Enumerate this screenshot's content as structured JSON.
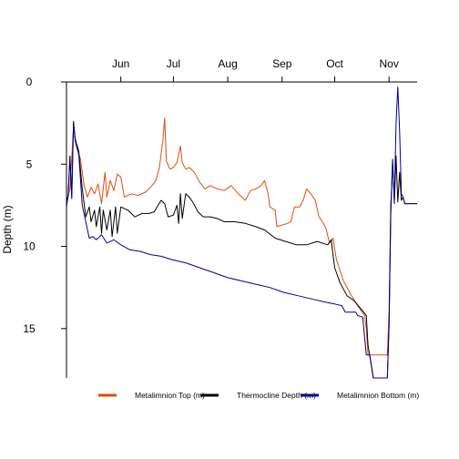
{
  "chart_data": {
    "type": "line",
    "ylabel": "Depth (m)",
    "y_reversed": true,
    "ylim": [
      18,
      0
    ],
    "yticks": [
      0,
      5,
      10,
      15
    ],
    "xlim": [
      "2012-05-01",
      "2012-11-17"
    ],
    "x_axis_position": "top",
    "x_ticks": [
      {
        "date": "2012-06-01",
        "label": "Jun"
      },
      {
        "date": "2012-07-01",
        "label": "Jul"
      },
      {
        "date": "2012-08-01",
        "label": "Aug"
      },
      {
        "date": "2012-09-01",
        "label": "Sep"
      },
      {
        "date": "2012-10-01",
        "label": "Oct"
      },
      {
        "date": "2012-11-01",
        "label": "Nov"
      }
    ],
    "grid": false,
    "legend_position": "bottom",
    "series": [
      {
        "name": "Metalimnion Top (m)",
        "color": "#e34a0f",
        "points": [
          [
            "2012-05-01",
            7.4
          ],
          [
            "2012-05-03",
            6.5
          ],
          [
            "2012-05-05",
            2.8
          ],
          [
            "2012-05-07",
            4.0
          ],
          [
            "2012-05-09",
            4.7
          ],
          [
            "2012-05-11",
            6.3
          ],
          [
            "2012-05-13",
            7.0
          ],
          [
            "2012-05-15",
            6.4
          ],
          [
            "2012-05-17",
            6.8
          ],
          [
            "2012-05-19",
            6.2
          ],
          [
            "2012-05-21",
            7.4
          ],
          [
            "2012-05-23",
            5.5
          ],
          [
            "2012-05-24",
            7.0
          ],
          [
            "2012-05-26",
            6.0
          ],
          [
            "2012-05-28",
            6.6
          ],
          [
            "2012-05-30",
            5.6
          ],
          [
            "2012-06-01",
            5.8
          ],
          [
            "2012-06-03",
            7.0
          ],
          [
            "2012-06-07",
            6.8
          ],
          [
            "2012-06-11",
            6.9
          ],
          [
            "2012-06-15",
            6.7
          ],
          [
            "2012-06-18",
            6.4
          ],
          [
            "2012-06-21",
            6.0
          ],
          [
            "2012-06-23",
            5.2
          ],
          [
            "2012-06-25",
            3.5
          ],
          [
            "2012-06-26",
            2.2
          ],
          [
            "2012-06-27",
            4.8
          ],
          [
            "2012-06-29",
            5.3
          ],
          [
            "2012-07-01",
            5.2
          ],
          [
            "2012-07-03",
            4.9
          ],
          [
            "2012-07-05",
            3.9
          ],
          [
            "2012-07-06",
            4.9
          ],
          [
            "2012-07-08",
            5.3
          ],
          [
            "2012-07-10",
            5.2
          ],
          [
            "2012-07-13",
            5.5
          ],
          [
            "2012-07-16",
            6.1
          ],
          [
            "2012-07-19",
            6.5
          ],
          [
            "2012-07-22",
            6.3
          ],
          [
            "2012-07-26",
            6.5
          ],
          [
            "2012-07-30",
            6.6
          ],
          [
            "2012-08-03",
            6.3
          ],
          [
            "2012-08-07",
            6.8
          ],
          [
            "2012-08-11",
            7.2
          ],
          [
            "2012-08-14",
            6.6
          ],
          [
            "2012-08-17",
            6.5
          ],
          [
            "2012-08-20",
            6.3
          ],
          [
            "2012-08-22",
            6.0
          ],
          [
            "2012-08-24",
            6.8
          ],
          [
            "2012-08-25",
            7.6
          ],
          [
            "2012-08-28",
            7.8
          ],
          [
            "2012-08-29",
            8.8
          ],
          [
            "2012-09-01",
            8.7
          ],
          [
            "2012-09-04",
            8.6
          ],
          [
            "2012-09-06",
            8.5
          ],
          [
            "2012-09-08",
            7.6
          ],
          [
            "2012-09-11",
            7.6
          ],
          [
            "2012-09-13",
            7.2
          ],
          [
            "2012-09-15",
            6.5
          ],
          [
            "2012-09-18",
            6.9
          ],
          [
            "2012-09-20",
            7.2
          ],
          [
            "2012-09-22",
            8.2
          ],
          [
            "2012-09-24",
            8.5
          ],
          [
            "2012-09-26",
            8.9
          ],
          [
            "2012-09-28",
            9.8
          ],
          [
            "2012-09-30",
            9.5
          ],
          [
            "2012-10-02",
            10.8
          ],
          [
            "2012-10-06",
            12.1
          ],
          [
            "2012-10-10",
            12.9
          ],
          [
            "2012-10-14",
            13.6
          ],
          [
            "2012-10-18",
            14.2
          ],
          [
            "2012-10-19",
            15.0
          ],
          [
            "2012-10-20",
            16.6
          ],
          [
            "2012-10-31",
            16.6
          ],
          [
            "2012-11-01",
            14.0
          ],
          [
            "2012-11-02",
            7.2
          ]
        ]
      },
      {
        "name": "Thermocline Depth (m)",
        "color": "#000000",
        "points": [
          [
            "2012-05-01",
            7.5
          ],
          [
            "2012-05-02",
            6.8
          ],
          [
            "2012-05-03",
            4.5
          ],
          [
            "2012-05-04",
            7.0
          ],
          [
            "2012-05-05",
            2.4
          ],
          [
            "2012-05-06",
            3.5
          ],
          [
            "2012-05-08",
            4.2
          ],
          [
            "2012-05-10",
            6.5
          ],
          [
            "2012-05-12",
            8.2
          ],
          [
            "2012-05-14",
            7.6
          ],
          [
            "2012-05-15",
            8.5
          ],
          [
            "2012-05-17",
            7.8
          ],
          [
            "2012-05-18",
            8.8
          ],
          [
            "2012-05-20",
            7.6
          ],
          [
            "2012-05-21",
            9.2
          ],
          [
            "2012-05-22",
            7.8
          ],
          [
            "2012-05-24",
            9.0
          ],
          [
            "2012-05-26",
            7.8
          ],
          [
            "2012-05-27",
            9.4
          ],
          [
            "2012-05-29",
            7.6
          ],
          [
            "2012-05-30",
            9.2
          ],
          [
            "2012-06-01",
            7.6
          ],
          [
            "2012-06-05",
            7.8
          ],
          [
            "2012-06-09",
            8.2
          ],
          [
            "2012-06-13",
            8.0
          ],
          [
            "2012-06-17",
            8.0
          ],
          [
            "2012-06-20",
            7.9
          ],
          [
            "2012-06-24",
            7.2
          ],
          [
            "2012-06-26",
            7.4
          ],
          [
            "2012-06-28",
            8.2
          ],
          [
            "2012-07-01",
            8.1
          ],
          [
            "2012-07-03",
            7.5
          ],
          [
            "2012-07-04",
            8.6
          ],
          [
            "2012-07-05",
            6.8
          ],
          [
            "2012-07-06",
            8.3
          ],
          [
            "2012-07-08",
            6.8
          ],
          [
            "2012-07-10",
            7.0
          ],
          [
            "2012-07-12",
            7.3
          ],
          [
            "2012-07-15",
            7.9
          ],
          [
            "2012-07-18",
            8.2
          ],
          [
            "2012-07-22",
            8.2
          ],
          [
            "2012-07-26",
            8.3
          ],
          [
            "2012-07-30",
            8.5
          ],
          [
            "2012-08-05",
            8.5
          ],
          [
            "2012-08-11",
            8.6
          ],
          [
            "2012-08-17",
            8.8
          ],
          [
            "2012-08-22",
            9.0
          ],
          [
            "2012-08-28",
            9.5
          ],
          [
            "2012-09-03",
            9.7
          ],
          [
            "2012-09-09",
            9.9
          ],
          [
            "2012-09-15",
            9.9
          ],
          [
            "2012-09-21",
            9.7
          ],
          [
            "2012-09-27",
            9.9
          ],
          [
            "2012-09-29",
            9.6
          ],
          [
            "2012-09-30",
            10.5
          ],
          [
            "2012-10-01",
            11.3
          ],
          [
            "2012-10-04",
            12.2
          ],
          [
            "2012-10-08",
            13.0
          ],
          [
            "2012-10-12",
            13.3
          ],
          [
            "2012-10-16",
            13.8
          ],
          [
            "2012-10-19",
            14.2
          ],
          [
            "2012-10-20",
            16.0
          ],
          [
            "2012-10-23",
            18.0
          ],
          [
            "2012-10-31",
            18.0
          ],
          [
            "2012-11-01",
            14.8
          ],
          [
            "2012-11-02",
            7.8
          ],
          [
            "2012-11-03",
            4.7
          ],
          [
            "2012-11-04",
            7.4
          ],
          [
            "2012-11-05",
            4.5
          ],
          [
            "2012-11-06",
            7.3
          ],
          [
            "2012-11-07",
            5.5
          ],
          [
            "2012-11-08",
            7.2
          ],
          [
            "2012-11-09",
            7.0
          ],
          [
            "2012-11-10",
            7.4
          ],
          [
            "2012-11-17",
            7.4
          ]
        ]
      },
      {
        "name": "Metalimnion Bottom (m)",
        "color": "#00008b",
        "points": [
          [
            "2012-05-01",
            7.6
          ],
          [
            "2012-05-02",
            6.9
          ],
          [
            "2012-05-03",
            4.6
          ],
          [
            "2012-05-04",
            7.1
          ],
          [
            "2012-05-05",
            2.5
          ],
          [
            "2012-05-06",
            3.6
          ],
          [
            "2012-05-08",
            4.4
          ],
          [
            "2012-05-10",
            7.5
          ],
          [
            "2012-05-12",
            8.5
          ],
          [
            "2012-05-14",
            9.5
          ],
          [
            "2012-05-16",
            9.4
          ],
          [
            "2012-05-18",
            9.6
          ],
          [
            "2012-05-21",
            9.3
          ],
          [
            "2012-05-24",
            9.8
          ],
          [
            "2012-05-28",
            9.6
          ],
          [
            "2012-06-01",
            9.9
          ],
          [
            "2012-06-06",
            10.2
          ],
          [
            "2012-06-12",
            10.3
          ],
          [
            "2012-06-18",
            10.5
          ],
          [
            "2012-06-24",
            10.6
          ],
          [
            "2012-06-30",
            10.8
          ],
          [
            "2012-07-08",
            11.0
          ],
          [
            "2012-07-16",
            11.3
          ],
          [
            "2012-07-24",
            11.6
          ],
          [
            "2012-08-01",
            11.9
          ],
          [
            "2012-08-09",
            12.1
          ],
          [
            "2012-08-17",
            12.3
          ],
          [
            "2012-08-25",
            12.5
          ],
          [
            "2012-09-02",
            12.8
          ],
          [
            "2012-09-10",
            13.0
          ],
          [
            "2012-09-18",
            13.2
          ],
          [
            "2012-09-26",
            13.4
          ],
          [
            "2012-10-01",
            13.5
          ],
          [
            "2012-10-05",
            13.6
          ],
          [
            "2012-10-07",
            14.0
          ],
          [
            "2012-10-13",
            14.0
          ],
          [
            "2012-10-14",
            14.2
          ],
          [
            "2012-10-17",
            14.3
          ],
          [
            "2012-10-18",
            15.5
          ],
          [
            "2012-10-19",
            16.6
          ],
          [
            "2012-10-21",
            16.6
          ],
          [
            "2012-10-23",
            18.0
          ],
          [
            "2012-10-31",
            18.0
          ],
          [
            "2012-11-01",
            14.8
          ],
          [
            "2012-11-02",
            8.0
          ],
          [
            "2012-11-03",
            4.8
          ],
          [
            "2012-11-04",
            7.2
          ],
          [
            "2012-11-05",
            2.5
          ],
          [
            "2012-11-06",
            0.3
          ],
          [
            "2012-11-07",
            3.0
          ],
          [
            "2012-11-08",
            6.8
          ],
          [
            "2012-11-09",
            7.0
          ],
          [
            "2012-11-10",
            7.4
          ],
          [
            "2012-11-17",
            7.4
          ]
        ]
      }
    ]
  }
}
